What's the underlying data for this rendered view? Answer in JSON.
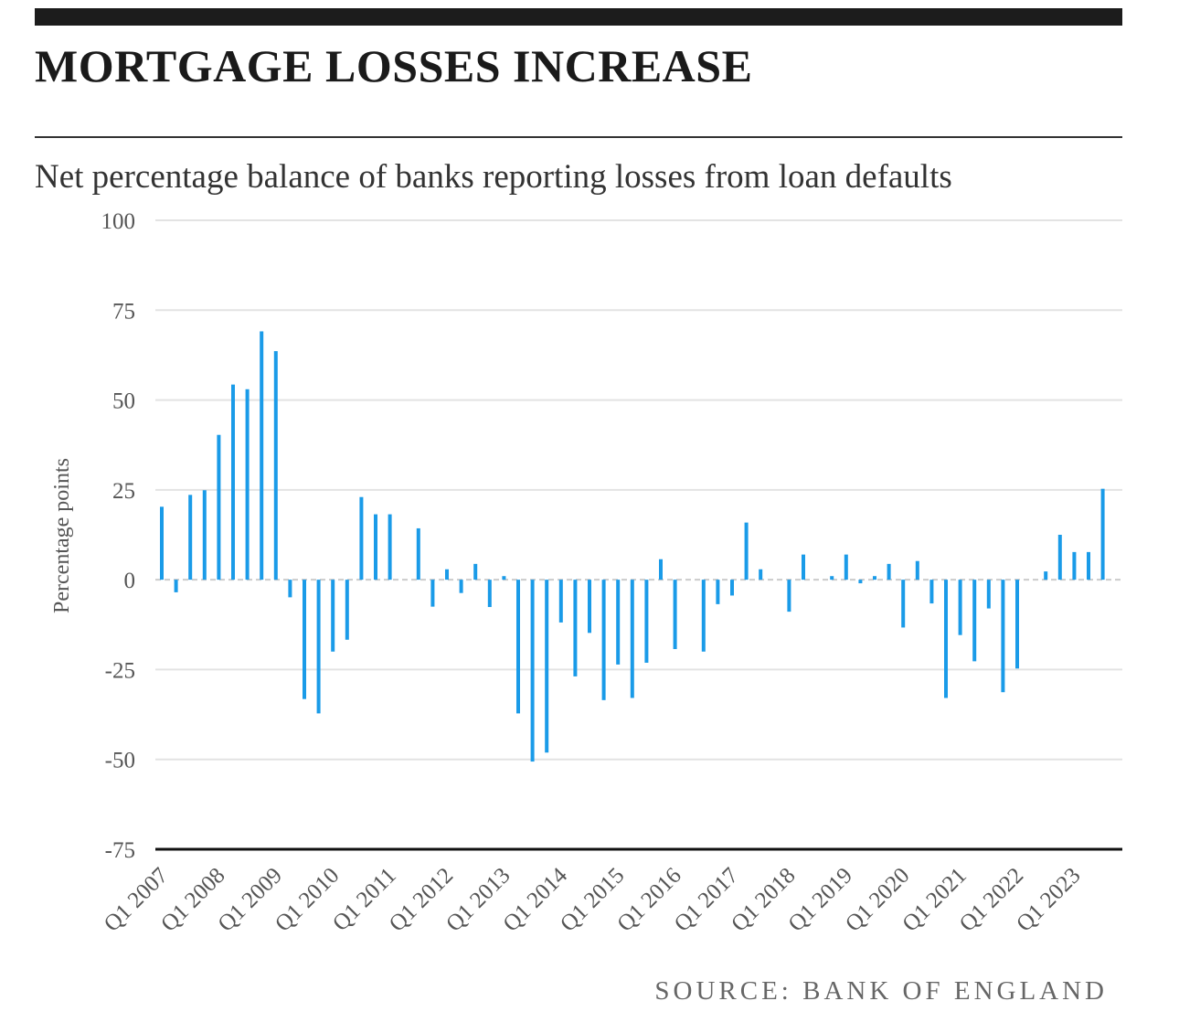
{
  "header": {
    "title": "MORTGAGE LOSSES INCREASE",
    "subtitle": "Net percentage balance of banks reporting losses from loan defaults"
  },
  "footer": {
    "source": "SOURCE: BANK OF ENGLAND"
  },
  "colors": {
    "bar": "#1a9be8",
    "grid": "#e3e3e3",
    "axis": "#111111",
    "zero_line": "#cccccc"
  },
  "chart_data": {
    "type": "bar",
    "title": "Net percentage balance of banks reporting losses from loan defaults",
    "ylabel": "Percentage points",
    "xlabel": "",
    "ylim": [
      -75,
      100
    ],
    "yticks": [
      100,
      75,
      50,
      25,
      0,
      -25,
      -50,
      -75
    ],
    "ytick_labels": [
      "100",
      "75",
      "50",
      "25",
      "0",
      "-25",
      "-50",
      "-75"
    ],
    "grid": true,
    "xtick_labels": [
      "Q1 2007",
      "Q1 2008",
      "Q1 2009",
      "Q1 2010",
      "Q1 2011",
      "Q1 2012",
      "Q1 2013",
      "Q1 2014",
      "Q1 2015",
      "Q1 2016",
      "Q1 2017",
      "Q1 2018",
      "Q1 2019",
      "Q1 2020",
      "Q1 2021",
      "Q1 2022",
      "Q1 2023"
    ],
    "first_quarter": "Q1 2007",
    "series": [
      {
        "name": "Net percentage balance",
        "values": [
          20.3,
          -3.5,
          23.6,
          24.9,
          40.3,
          54.3,
          53.0,
          69.1,
          63.6,
          -4.9,
          -33.2,
          -37.2,
          -20.0,
          -16.7,
          23.0,
          18.2,
          18.2,
          0,
          14.3,
          -7.5,
          2.9,
          -3.7,
          4.4,
          -7.6,
          1.0,
          -37.2,
          -50.6,
          -48.1,
          -11.9,
          -26.9,
          -14.8,
          -33.5,
          -23.6,
          -32.9,
          -23.1,
          5.7,
          -19.3,
          0,
          -20.0,
          -6.8,
          -4.4,
          15.9,
          2.9,
          0,
          -8.9,
          7.0,
          0,
          1.0,
          7.0,
          -1.0,
          1.0,
          4.4,
          -13.3,
          5.2,
          -6.6,
          -32.9,
          -15.4,
          -22.7,
          -8.0,
          -31.3,
          -24.7,
          0,
          2.3,
          12.5,
          7.7,
          7.7,
          25.3
        ]
      }
    ]
  }
}
